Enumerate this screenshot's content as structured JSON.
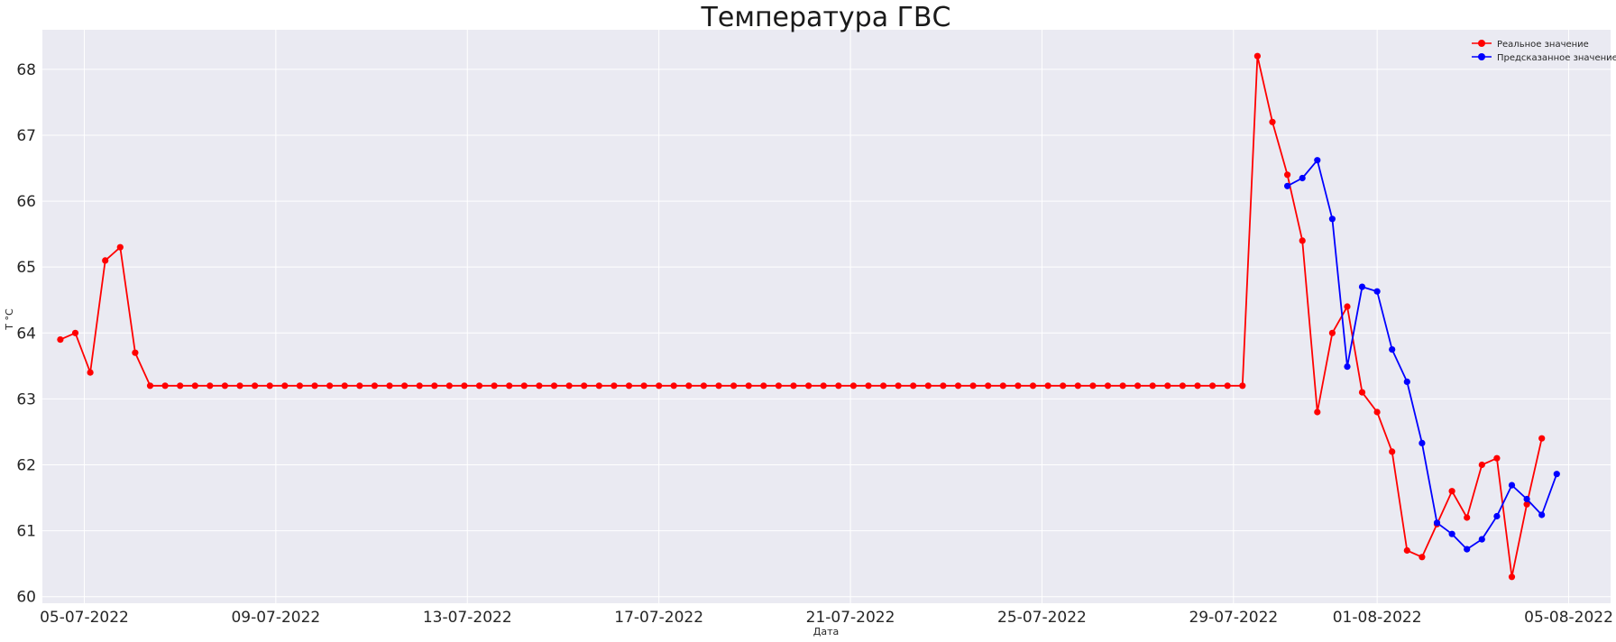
{
  "chart_data": {
    "type": "line",
    "title": "Температура ГВС",
    "xlabel": "Дата",
    "ylabel": "T °C",
    "x_tick_labels": [
      "05-07-2022",
      "09-07-2022",
      "13-07-2022",
      "17-07-2022",
      "21-07-2022",
      "25-07-2022",
      "29-07-2022",
      "01-08-2022",
      "05-08-2022"
    ],
    "y_tick_labels": [
      "60",
      "61",
      "62",
      "63",
      "64",
      "65",
      "66",
      "67",
      "68"
    ],
    "ylim": [
      59.9,
      68.6
    ],
    "xlim": [
      "2022-07-04T03:00",
      "2022-08-05T21:00"
    ],
    "grid": true,
    "legend_position": "top-right",
    "series": [
      {
        "name": "Реальное значение",
        "color": "#ff0000",
        "start": "2022-07-04T12:00",
        "step_hours": 7.5,
        "values": [
          63.9,
          64.0,
          63.4,
          65.1,
          65.3,
          63.7,
          63.2,
          63.2,
          63.2,
          63.2,
          63.2,
          63.2,
          63.2,
          63.2,
          63.2,
          63.2,
          63.2,
          63.2,
          63.2,
          63.2,
          63.2,
          63.2,
          63.2,
          63.2,
          63.2,
          63.2,
          63.2,
          63.2,
          63.2,
          63.2,
          63.2,
          63.2,
          63.2,
          63.2,
          63.2,
          63.2,
          63.2,
          63.2,
          63.2,
          63.2,
          63.2,
          63.2,
          63.2,
          63.2,
          63.2,
          63.2,
          63.2,
          63.2,
          63.2,
          63.2,
          63.2,
          63.2,
          63.2,
          63.2,
          63.2,
          63.2,
          63.2,
          63.2,
          63.2,
          63.2,
          63.2,
          63.2,
          63.2,
          63.2,
          63.2,
          63.2,
          63.2,
          63.2,
          63.2,
          63.2,
          63.2,
          63.2,
          63.2,
          63.2,
          63.2,
          63.2,
          63.2,
          63.2,
          63.2,
          63.2,
          68.2,
          67.2,
          66.4,
          65.4,
          62.8,
          64.0,
          64.4,
          63.1,
          62.8,
          62.2,
          60.7,
          60.6,
          61.1,
          61.6,
          61.2,
          62.0,
          62.1,
          60.3,
          61.4,
          62.4
        ]
      },
      {
        "name": "Предсказанное значение",
        "color": "#0000ff",
        "start": "2022-07-30T03:00",
        "step_hours": 7.5,
        "values": [
          66.23,
          66.35,
          66.62,
          65.73,
          63.49,
          64.7,
          64.63,
          63.75,
          63.26,
          62.33,
          61.12,
          60.95,
          60.72,
          60.87,
          61.22,
          61.69,
          61.48,
          61.24,
          61.86
        ]
      }
    ]
  }
}
